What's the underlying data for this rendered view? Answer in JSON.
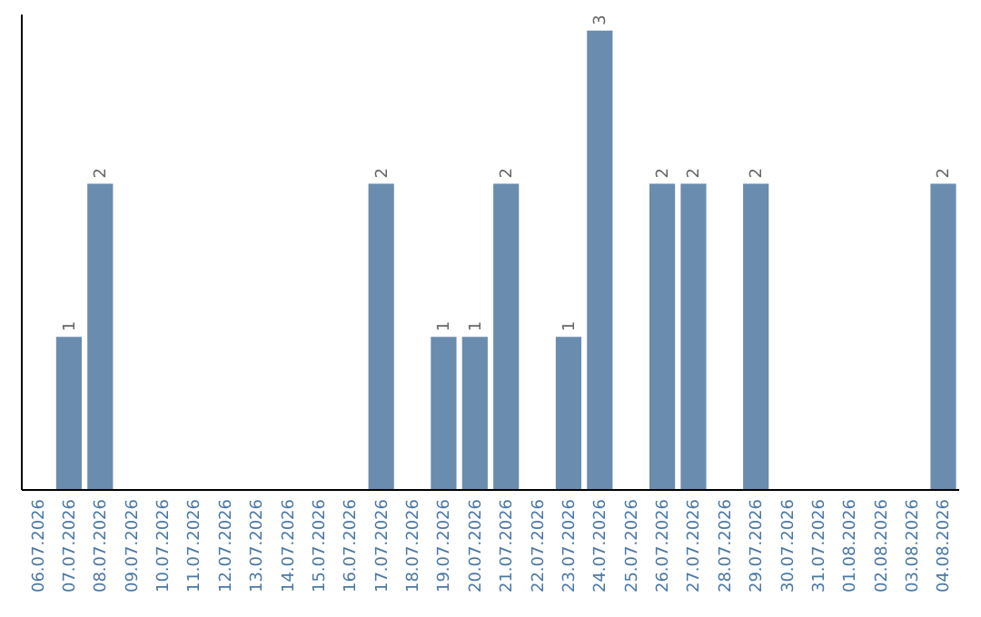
{
  "chart_data": {
    "type": "bar",
    "categories": [
      "06.07.2026",
      "07.07.2026",
      "08.07.2026",
      "09.07.2026",
      "10.07.2026",
      "11.07.2026",
      "12.07.2026",
      "13.07.2026",
      "14.07.2026",
      "15.07.2026",
      "16.07.2026",
      "17.07.2026",
      "18.07.2026",
      "19.07.2026",
      "20.07.2026",
      "21.07.2026",
      "22.07.2026",
      "23.07.2026",
      "24.07.2026",
      "25.07.2026",
      "26.07.2026",
      "27.07.2026",
      "28.07.2026",
      "29.07.2026",
      "30.07.2026",
      "31.07.2026",
      "01.08.2026",
      "02.08.2026",
      "03.08.2026",
      "04.08.2026"
    ],
    "values": [
      0,
      1,
      2,
      0,
      0,
      0,
      0,
      0,
      0,
      0,
      0,
      2,
      0,
      1,
      1,
      2,
      0,
      1,
      3,
      0,
      2,
      2,
      0,
      2,
      0,
      0,
      0,
      0,
      0,
      2
    ],
    "value_labels": [
      null,
      "1",
      "2",
      null,
      null,
      null,
      null,
      null,
      null,
      null,
      null,
      "2",
      null,
      "1",
      "1",
      "2",
      null,
      "1",
      "3",
      null,
      "2",
      "2",
      null,
      "2",
      null,
      null,
      null,
      null,
      null,
      "2"
    ],
    "color": "#6a8caf",
    "tick_labels": "x"
  }
}
